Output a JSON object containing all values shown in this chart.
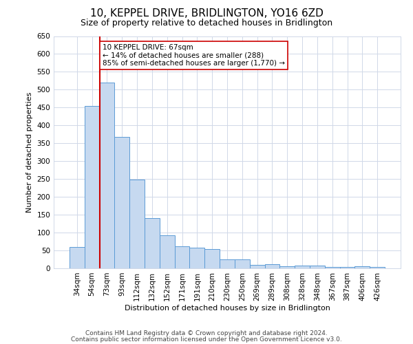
{
  "title": "10, KEPPEL DRIVE, BRIDLINGTON, YO16 6ZD",
  "subtitle": "Size of property relative to detached houses in Bridlington",
  "xlabel": "Distribution of detached houses by size in Bridlington",
  "ylabel": "Number of detached properties",
  "footer1": "Contains HM Land Registry data © Crown copyright and database right 2024.",
  "footer2": "Contains public sector information licensed under the Open Government Licence v3.0.",
  "annotation_line1": "10 KEPPEL DRIVE: 67sqm",
  "annotation_line2": "← 14% of detached houses are smaller (288)",
  "annotation_line3": "85% of semi-detached houses are larger (1,770) →",
  "categories": [
    "34sqm",
    "54sqm",
    "73sqm",
    "93sqm",
    "112sqm",
    "132sqm",
    "152sqm",
    "171sqm",
    "191sqm",
    "210sqm",
    "230sqm",
    "250sqm",
    "269sqm",
    "289sqm",
    "308sqm",
    "328sqm",
    "348sqm",
    "367sqm",
    "387sqm",
    "406sqm",
    "426sqm"
  ],
  "values": [
    60,
    455,
    520,
    368,
    248,
    140,
    92,
    62,
    57,
    53,
    25,
    25,
    10,
    12,
    5,
    7,
    7,
    3,
    3,
    5,
    3
  ],
  "bar_color": "#c6d9f0",
  "bar_edge_color": "#5b9bd5",
  "red_line_index": 2,
  "ylim": [
    0,
    650
  ],
  "yticks": [
    0,
    50,
    100,
    150,
    200,
    250,
    300,
    350,
    400,
    450,
    500,
    550,
    600,
    650
  ],
  "bg_color": "#ffffff",
  "grid_color": "#d0d8e8",
  "title_fontsize": 11,
  "subtitle_fontsize": 9,
  "axis_label_fontsize": 8,
  "tick_fontsize": 7.5,
  "footer_fontsize": 6.5,
  "annotation_fontsize": 7.5,
  "red_line_color": "#cc0000",
  "annotation_box_edge": "#cc0000"
}
